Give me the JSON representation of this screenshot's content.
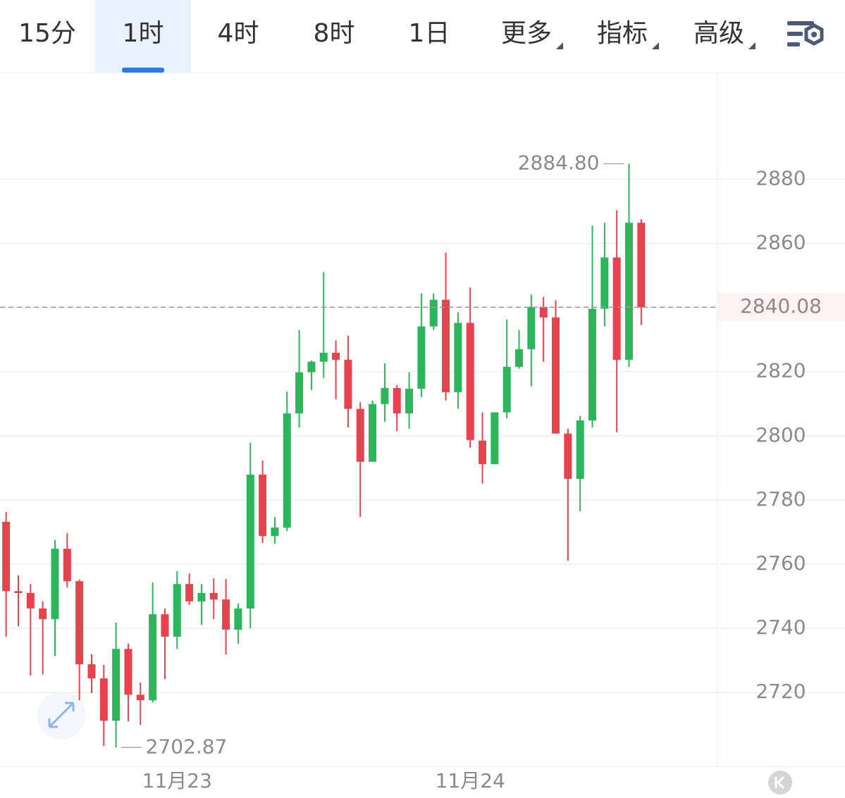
{
  "tabs": [
    "15分",
    "1时",
    "4时",
    "8时",
    "1日",
    "更多",
    "指标",
    "高级"
  ],
  "selected_tab": 1,
  "chart_data": {
    "type": "candlestick",
    "categories": [
      null,
      null,
      null,
      null,
      null,
      null,
      null,
      null,
      null,
      null,
      null,
      null,
      null,
      null,
      "11月23",
      null,
      null,
      null,
      null,
      null,
      null,
      null,
      null,
      null,
      null,
      null,
      null,
      null,
      null,
      null,
      null,
      null,
      null,
      null,
      null,
      null,
      null,
      null,
      "11月24",
      null,
      null,
      null,
      null,
      null,
      null,
      null,
      null,
      null,
      null,
      null,
      null,
      null,
      null
    ],
    "open": [
      2773.2,
      2751.6,
      2751,
      2746.2,
      2742.9,
      2764.8,
      2754.7,
      2728.8,
      2724.4,
      2711.2,
      2733.6,
      2719.3,
      2717.6,
      2744.4,
      2737.4,
      2753.8,
      2748.4,
      2751,
      2749,
      2739.6,
      2746.2,
      2787.9,
      2768.8,
      2771.4,
      2807,
      2819.8,
      2823.1,
      2825.9,
      2823.7,
      2808.4,
      2791.9,
      2809.9,
      2814.9,
      2807,
      2814.7,
      2834.1,
      2842.4,
      2813.6,
      2835.2,
      2798.5,
      2791.2,
      2807.3,
      2821.5,
      2827,
      2840.2,
      2836.9,
      2800.7,
      2786.6,
      2804.8,
      2839.6,
      2855.6,
      2823.7,
      2866.4
    ],
    "high": [
      2776.3,
      2756.5,
      2753.8,
      2748.4,
      2767.5,
      2769.7,
      2755.2,
      2731.9,
      2728.6,
      2741.8,
      2735.2,
      2723.1,
      2754.3,
      2746.2,
      2757.8,
      2757.1,
      2753.8,
      2755.6,
      2755.4,
      2747.7,
      2797.8,
      2792.3,
      2774.7,
      2813.8,
      2833,
      2823.5,
      2851,
      2829.7,
      2831.2,
      2810.5,
      2811,
      2822.6,
      2815.8,
      2819.8,
      2844.4,
      2844.4,
      2857.1,
      2838.5,
      2846.2,
      2807.3,
      2807.3,
      2836.3,
      2833,
      2844,
      2843.3,
      2842.2,
      2802.2,
      2806.2,
      2865.5,
      2866.4,
      2870.3,
      2884.8,
      2867.5
    ],
    "low": [
      2737.4,
      2740.7,
      2725.3,
      2725.7,
      2731.4,
      2752.7,
      2717.6,
      2719.8,
      2703.3,
      2702.87,
      2711,
      2709.9,
      2716.9,
      2724.2,
      2733.6,
      2747.3,
      2741.1,
      2742.9,
      2731.9,
      2735.2,
      2740,
      2766.6,
      2766.4,
      2770.3,
      2802.6,
      2814.3,
      2818,
      2811.4,
      2802.6,
      2774.7,
      2791.9,
      2804.4,
      2801.5,
      2802.2,
      2812.1,
      2833,
      2811,
      2808.4,
      2796.3,
      2785.1,
      2791.2,
      2805.5,
      2820.9,
      2815.4,
      2823.1,
      2800.7,
      2761.1,
      2776.5,
      2802.6,
      2834.1,
      2801.1,
      2821.5,
      2834.5
    ],
    "close": [
      2751.6,
      2751,
      2746.2,
      2742.9,
      2764.8,
      2754.7,
      2728.8,
      2724.4,
      2711.2,
      2733.6,
      2719.3,
      2717.6,
      2744.4,
      2737.4,
      2753.8,
      2748.4,
      2751,
      2749,
      2739.6,
      2746.2,
      2787.9,
      2768.8,
      2771.4,
      2807,
      2819.8,
      2823.1,
      2825.9,
      2823.7,
      2808.4,
      2791.9,
      2809.9,
      2814.9,
      2807,
      2814.7,
      2834.1,
      2842.4,
      2813.6,
      2835.2,
      2798.7,
      2791.2,
      2807.3,
      2821.5,
      2827,
      2840.2,
      2836.9,
      2800.7,
      2786.6,
      2804.8,
      2839.6,
      2855.6,
      2823.7,
      2866.4,
      2840.08
    ],
    "up_color": "#2db55d",
    "down_color": "#e5434f",
    "ylim": [
      2697,
      2913
    ],
    "yticks": [
      2720,
      2740,
      2760,
      2780,
      2800,
      2820,
      2840,
      2860,
      2880
    ],
    "grid": true,
    "last_price": 2840.08,
    "annotations": [
      {
        "value": 2884.8,
        "label": "2884.80"
      },
      {
        "value": 2702.87,
        "label": "2702.87"
      }
    ]
  }
}
